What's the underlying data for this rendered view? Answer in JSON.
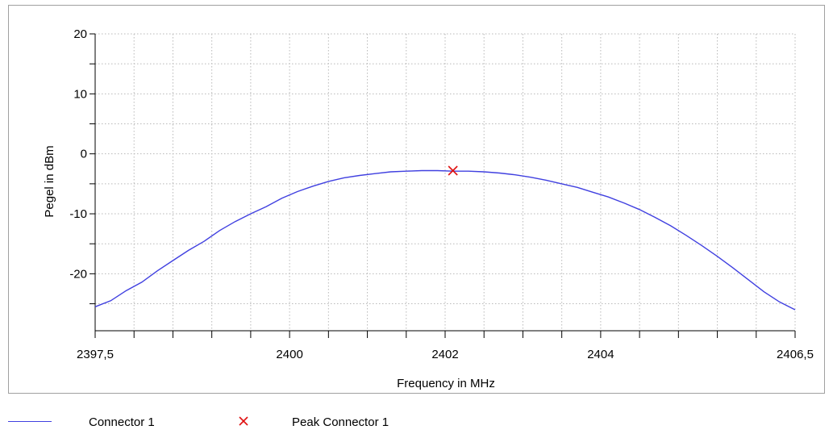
{
  "chart_data": {
    "type": "line",
    "xlabel": "Frequency in MHz",
    "ylabel": "Pegel in dBm",
    "xlim": [
      2397.5,
      2406.5
    ],
    "ylim": [
      -29.5,
      20
    ],
    "x_ticks": [
      {
        "value": 2397.5,
        "label": "2397,5"
      },
      {
        "value": 2400,
        "label": "2400"
      },
      {
        "value": 2402,
        "label": "2402"
      },
      {
        "value": 2404,
        "label": "2404"
      },
      {
        "value": 2406.5,
        "label": "2406,5"
      }
    ],
    "y_ticks": [
      {
        "value": 20,
        "label": "20"
      },
      {
        "value": 10,
        "label": "10"
      },
      {
        "value": 0,
        "label": "0"
      },
      {
        "value": -10,
        "label": "-10"
      },
      {
        "value": -20,
        "label": "-20"
      }
    ],
    "grid": true,
    "legend_position": "bottom",
    "series": [
      {
        "name": "Connector 1",
        "color": "#4040e0",
        "x": [
          2397.5,
          2397.7,
          2397.9,
          2398.1,
          2398.3,
          2398.5,
          2398.7,
          2398.9,
          2399.1,
          2399.3,
          2399.5,
          2399.7,
          2399.9,
          2400.1,
          2400.3,
          2400.5,
          2400.7,
          2400.9,
          2401.1,
          2401.3,
          2401.5,
          2401.7,
          2401.9,
          2402.1,
          2402.3,
          2402.5,
          2402.7,
          2402.9,
          2403.1,
          2403.3,
          2403.5,
          2403.7,
          2403.9,
          2404.1,
          2404.3,
          2404.5,
          2404.7,
          2404.9,
          2405.1,
          2405.3,
          2405.5,
          2405.7,
          2405.9,
          2406.1,
          2406.3,
          2406.5
        ],
        "y": [
          -25.5,
          -24.5,
          -22.8,
          -21.4,
          -19.5,
          -17.8,
          -16.1,
          -14.6,
          -12.8,
          -11.3,
          -10.0,
          -8.8,
          -7.4,
          -6.3,
          -5.4,
          -4.6,
          -4.0,
          -3.6,
          -3.3,
          -3.0,
          -2.9,
          -2.8,
          -2.8,
          -2.9,
          -2.9,
          -3.0,
          -3.2,
          -3.5,
          -3.9,
          -4.4,
          -5.0,
          -5.6,
          -6.4,
          -7.2,
          -8.2,
          -9.3,
          -10.6,
          -12.0,
          -13.6,
          -15.3,
          -17.1,
          -19.0,
          -21.0,
          -23.0,
          -24.7,
          -26.0
        ]
      },
      {
        "name": "Peak Connector 1",
        "color": "#e01010",
        "marker": "x",
        "x": [
          2402.1
        ],
        "y": [
          -2.8
        ]
      }
    ]
  }
}
